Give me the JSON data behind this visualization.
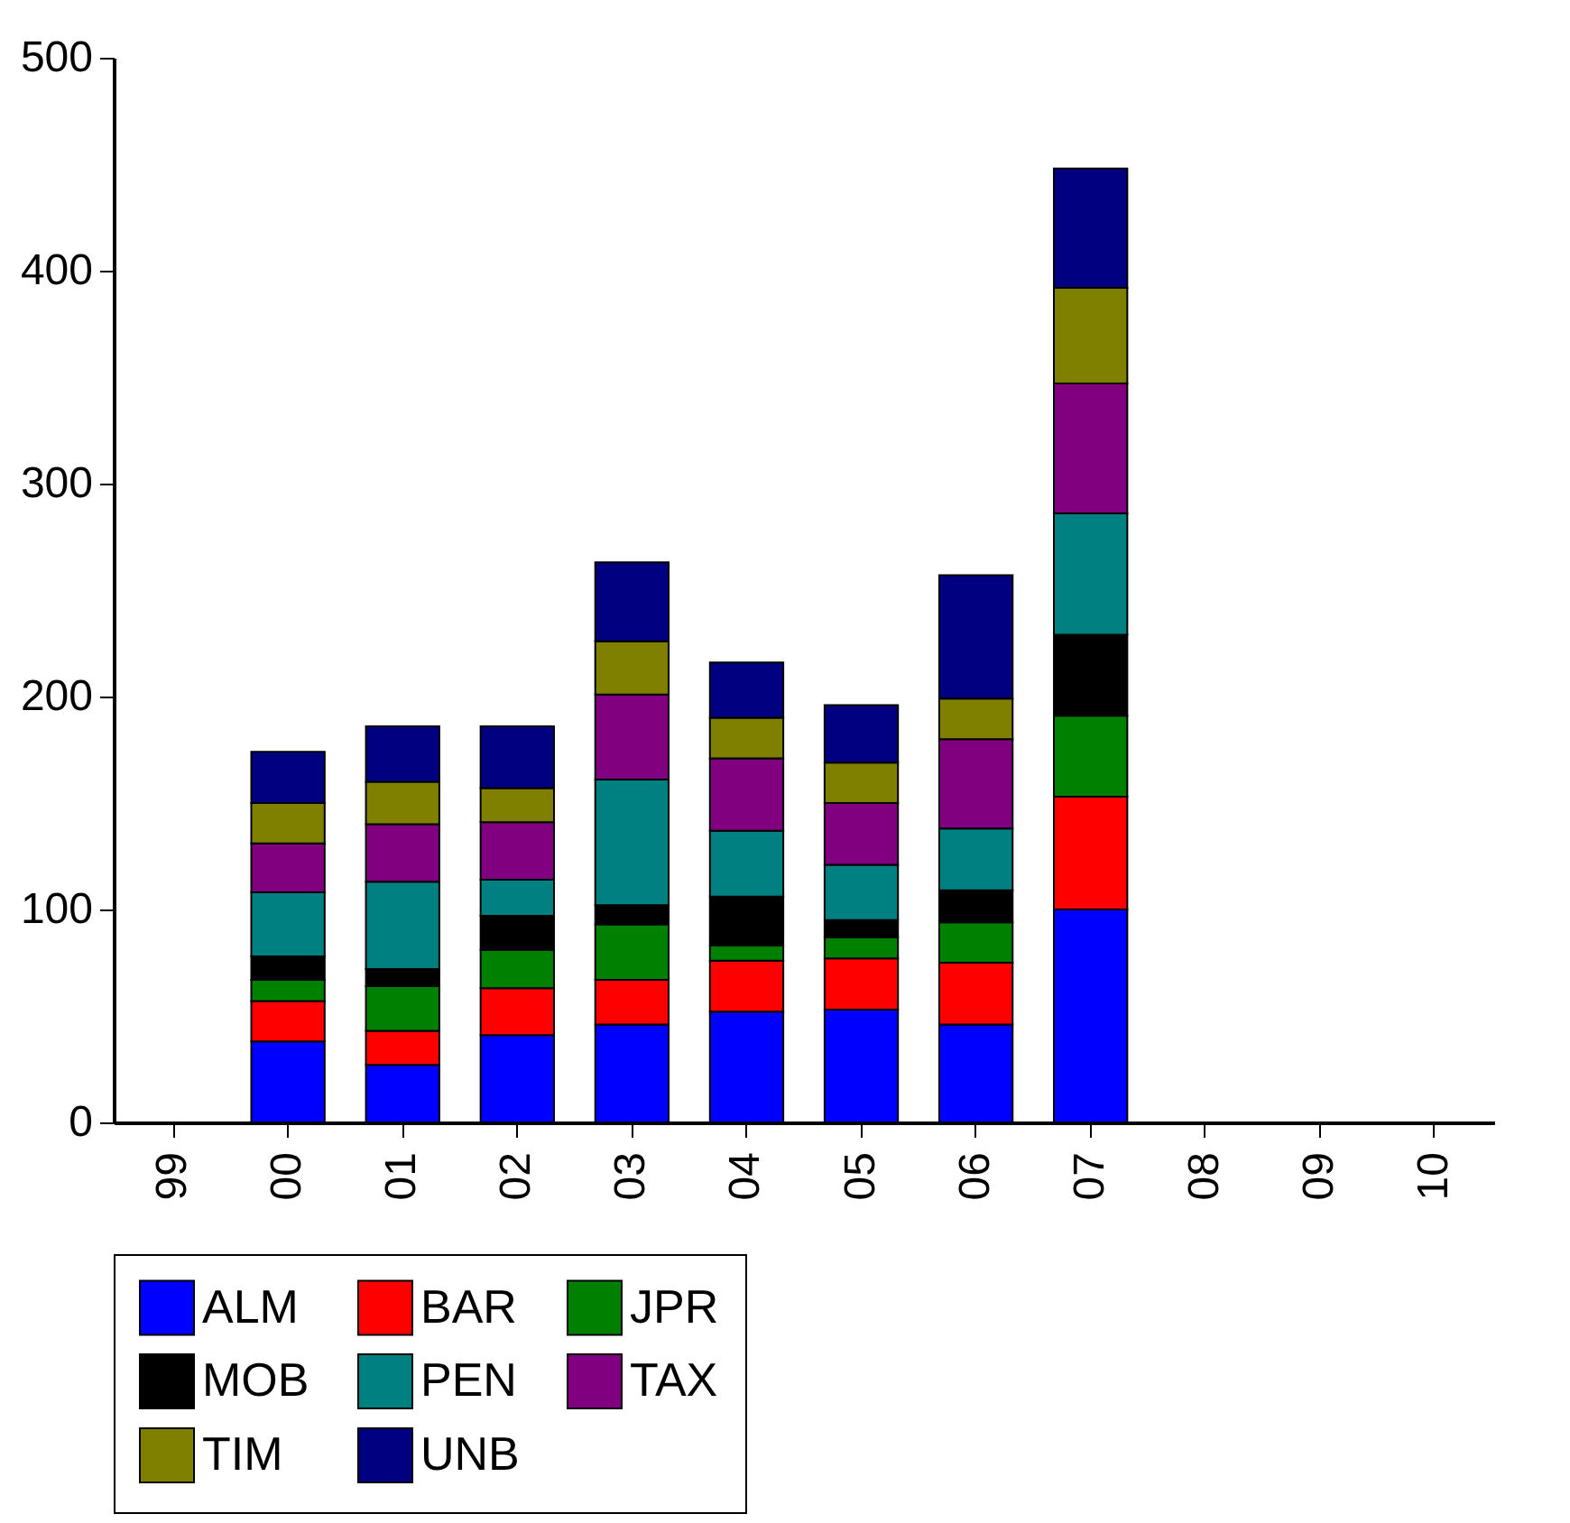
{
  "chart_data": {
    "type": "bar",
    "stacked": true,
    "categories": [
      "99",
      "00",
      "01",
      "02",
      "03",
      "04",
      "05",
      "06",
      "07",
      "08",
      "09",
      "10"
    ],
    "series": [
      {
        "name": "ALM",
        "color": "#0000ff",
        "values": [
          null,
          38,
          27,
          41,
          46,
          52,
          53,
          46,
          100,
          null,
          null,
          null
        ]
      },
      {
        "name": "BAR",
        "color": "#ff0000",
        "values": [
          null,
          19,
          16,
          22,
          21,
          24,
          24,
          29,
          53,
          null,
          null,
          null
        ]
      },
      {
        "name": "JPR",
        "color": "#008000",
        "values": [
          null,
          10,
          21,
          18,
          26,
          7,
          10,
          19,
          38,
          null,
          null,
          null
        ]
      },
      {
        "name": "MOB",
        "color": "#000000",
        "values": [
          null,
          11,
          8,
          16,
          9,
          23,
          8,
          15,
          38,
          null,
          null,
          null
        ]
      },
      {
        "name": "PEN",
        "color": "#008080",
        "values": [
          null,
          30,
          41,
          17,
          59,
          31,
          26,
          29,
          57,
          null,
          null,
          null
        ]
      },
      {
        "name": "TAX",
        "color": "#800080",
        "values": [
          null,
          23,
          27,
          27,
          40,
          34,
          29,
          42,
          61,
          null,
          null,
          null
        ]
      },
      {
        "name": "TIM",
        "color": "#808000",
        "values": [
          null,
          19,
          20,
          16,
          25,
          19,
          19,
          19,
          45,
          null,
          null,
          null
        ]
      },
      {
        "name": "UNB",
        "color": "#000080",
        "values": [
          null,
          24,
          26,
          29,
          37,
          26,
          27,
          58,
          56,
          null,
          null,
          null
        ]
      }
    ],
    "ylim": [
      0,
      500
    ],
    "yticks": [
      0,
      100,
      200,
      300,
      400,
      500
    ],
    "grid": false,
    "legend": "bottom"
  }
}
